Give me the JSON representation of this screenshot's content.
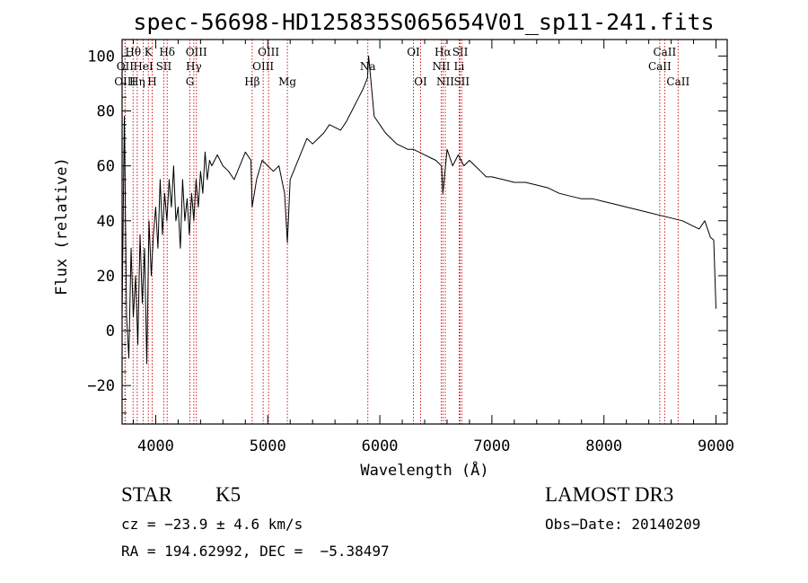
{
  "chart_data": {
    "type": "line",
    "title": "spec-56698-HD125835S065654V01_sp11-241.fits",
    "xlabel": "Wavelength (Å)",
    "ylabel": "Flux (relative)",
    "xlim": [
      3700,
      9100
    ],
    "ylim": [
      -34,
      106
    ],
    "xticks": [
      4000,
      5000,
      6000,
      7000,
      8000,
      9000
    ],
    "yticks": [
      -20,
      0,
      20,
      40,
      60,
      80,
      100
    ],
    "tick_labels_x": [
      "4000",
      "5000",
      "6000",
      "7000",
      "8000",
      "9000"
    ],
    "tick_labels_y": [
      "−20",
      "0",
      "20",
      "40",
      "60",
      "80",
      "100"
    ],
    "series": [
      {
        "name": "flux",
        "color": "#000000",
        "x": [
          3700,
          3720,
          3740,
          3760,
          3780,
          3800,
          3820,
          3840,
          3860,
          3880,
          3900,
          3920,
          3940,
          3960,
          3980,
          4000,
          4020,
          4040,
          4060,
          4080,
          4100,
          4120,
          4140,
          4160,
          4180,
          4200,
          4220,
          4240,
          4260,
          4280,
          4300,
          4320,
          4340,
          4360,
          4380,
          4400,
          4420,
          4440,
          4460,
          4480,
          4500,
          4550,
          4600,
          4650,
          4700,
          4750,
          4800,
          4850,
          4860,
          4900,
          4950,
          5000,
          5050,
          5100,
          5150,
          5175,
          5200,
          5250,
          5300,
          5350,
          5400,
          5450,
          5500,
          5550,
          5600,
          5650,
          5700,
          5750,
          5800,
          5850,
          5890,
          5900,
          5950,
          6000,
          6050,
          6100,
          6150,
          6200,
          6250,
          6300,
          6350,
          6400,
          6450,
          6500,
          6550,
          6563,
          6600,
          6650,
          6700,
          6750,
          6800,
          6850,
          6900,
          6950,
          7000,
          7100,
          7200,
          7300,
          7400,
          7500,
          7600,
          7700,
          7800,
          7900,
          8000,
          8100,
          8200,
          8300,
          8400,
          8500,
          8600,
          8700,
          8800,
          8850,
          8900,
          8950,
          8980,
          9000
        ],
        "y": [
          5,
          78,
          5,
          -10,
          30,
          5,
          20,
          -5,
          35,
          10,
          30,
          -12,
          40,
          20,
          35,
          45,
          30,
          55,
          35,
          50,
          40,
          55,
          45,
          60,
          40,
          45,
          30,
          55,
          40,
          48,
          35,
          50,
          40,
          55,
          45,
          58,
          50,
          65,
          55,
          62,
          60,
          64,
          60,
          58,
          55,
          60,
          65,
          62,
          45,
          55,
          62,
          60,
          58,
          60,
          50,
          32,
          55,
          60,
          65,
          70,
          68,
          70,
          72,
          75,
          74,
          73,
          76,
          80,
          84,
          88,
          92,
          100,
          78,
          75,
          72,
          70,
          68,
          67,
          66,
          66,
          65,
          64,
          63,
          62,
          60,
          50,
          66,
          60,
          64,
          60,
          62,
          60,
          58,
          56,
          56,
          55,
          54,
          54,
          53,
          52,
          50,
          49,
          48,
          48,
          47,
          46,
          45,
          44,
          43,
          42,
          41,
          40,
          38,
          37,
          40,
          34,
          33,
          8
        ]
      }
    ],
    "spectral_lines": [
      {
        "label": "Hθ",
        "x": 3798,
        "row": 1
      },
      {
        "label": "OII",
        "x": 3727,
        "row": 2
      },
      {
        "label": "HeI",
        "x": 3889,
        "row": 2
      },
      {
        "label": "OIII",
        "x": 3726,
        "row": 3
      },
      {
        "label": "Hη",
        "x": 3835,
        "row": 3
      },
      {
        "label": "K",
        "x": 3934,
        "row": 1
      },
      {
        "label": "H",
        "x": 3968,
        "row": 3
      },
      {
        "label": "SII",
        "x": 4072,
        "row": 2
      },
      {
        "label": "Hδ",
        "x": 4102,
        "row": 1
      },
      {
        "label": "OIII",
        "x": 4363,
        "row": 1
      },
      {
        "label": "Hγ",
        "x": 4340,
        "row": 2
      },
      {
        "label": "G",
        "x": 4305,
        "row": 3
      },
      {
        "label": "Hβ",
        "x": 4861,
        "row": 3
      },
      {
        "label": "OIII",
        "x": 5007,
        "row": 1
      },
      {
        "label": "OIII",
        "x": 4959,
        "row": 2
      },
      {
        "label": "Mg",
        "x": 5175,
        "row": 3
      },
      {
        "label": "Na",
        "x": 5893,
        "row": 2
      },
      {
        "label": "OI",
        "x": 6300,
        "row": 1
      },
      {
        "label": "OI",
        "x": 6364,
        "row": 3
      },
      {
        "label": "Hα",
        "x": 6563,
        "row": 1
      },
      {
        "label": "NII",
        "x": 6548,
        "row": 2
      },
      {
        "label": "NII",
        "x": 6584,
        "row": 3
      },
      {
        "label": "SII",
        "x": 6717,
        "row": 1
      },
      {
        "label": "Li",
        "x": 6708,
        "row": 2
      },
      {
        "label": "SII",
        "x": 6731,
        "row": 3
      },
      {
        "label": "CaII",
        "x": 8542,
        "row": 1
      },
      {
        "label": "CaII",
        "x": 8498,
        "row": 2
      },
      {
        "label": "CaII",
        "x": 8662,
        "row": 3
      }
    ]
  },
  "info": {
    "object_class": "STAR",
    "subclass": "K5",
    "redshift": "cz = −23.9 ± 4.6 km/s",
    "coords": "RA = 194.62992, DEC =  −5.38497",
    "survey": "LAMOST DR3",
    "obs_date": "Obs−Date: 20140209"
  }
}
